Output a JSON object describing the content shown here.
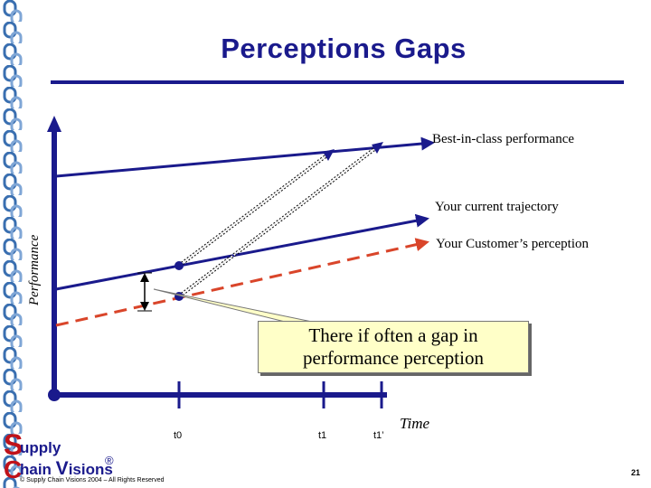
{
  "title": "Perceptions Gaps",
  "labels": {
    "best_in_class": "Best-in-class performance",
    "current_trajectory": "Your current trajectory",
    "customer_perception": "Your Customer’s perception",
    "y_axis": "Performance",
    "x_axis": "Time",
    "t0": "t0",
    "t1": "t1",
    "t1_prime": "t1’"
  },
  "callout": {
    "line1": "There if often a gap in",
    "line2": "performance perception"
  },
  "footer": {
    "logo_S": "S",
    "logo_upply": "upply",
    "logo_C": "C",
    "logo_hain": "hain ",
    "logo_V": "V",
    "logo_isions": "isions",
    "logo_reg": "®",
    "copyright": "© Supply Chain Visions 2004 – All Rights Reserved",
    "page_number": "21"
  },
  "colors": {
    "navy": "#1a1a8c",
    "red_dashed": "#d9452a",
    "callout_bg": "#ffffc8",
    "logo_red": "#c0121a"
  }
}
